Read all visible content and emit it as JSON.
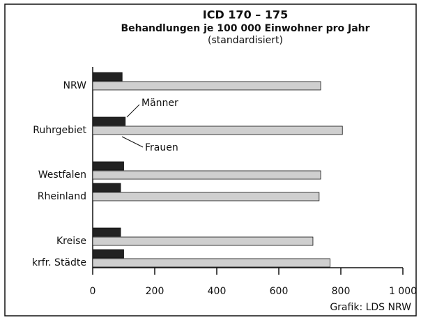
{
  "chart_data": {
    "type": "hbar",
    "title": "ICD 170 – 175",
    "subtitle": "Behandlungen je 100 000 Einwohner pro Jahr",
    "note": "(standardisiert)",
    "credit": "Grafik: LDS NRW",
    "categories": [
      "NRW",
      "Ruhrgebiet",
      "Westfalen",
      "Rheinland",
      "Kreise",
      "krfr. Städte"
    ],
    "series": [
      {
        "name": "Männer",
        "color": "#222222",
        "values": [
          95,
          105,
          100,
          90,
          90,
          100
        ]
      },
      {
        "name": "Frauen",
        "color": "#cfcfcf",
        "values": [
          735,
          805,
          735,
          730,
          710,
          765
        ]
      }
    ],
    "xlim": [
      0,
      1000
    ],
    "xticks": [
      0,
      200,
      400,
      600,
      800,
      {
        "value": 1000,
        "label": "1 000"
      }
    ]
  }
}
